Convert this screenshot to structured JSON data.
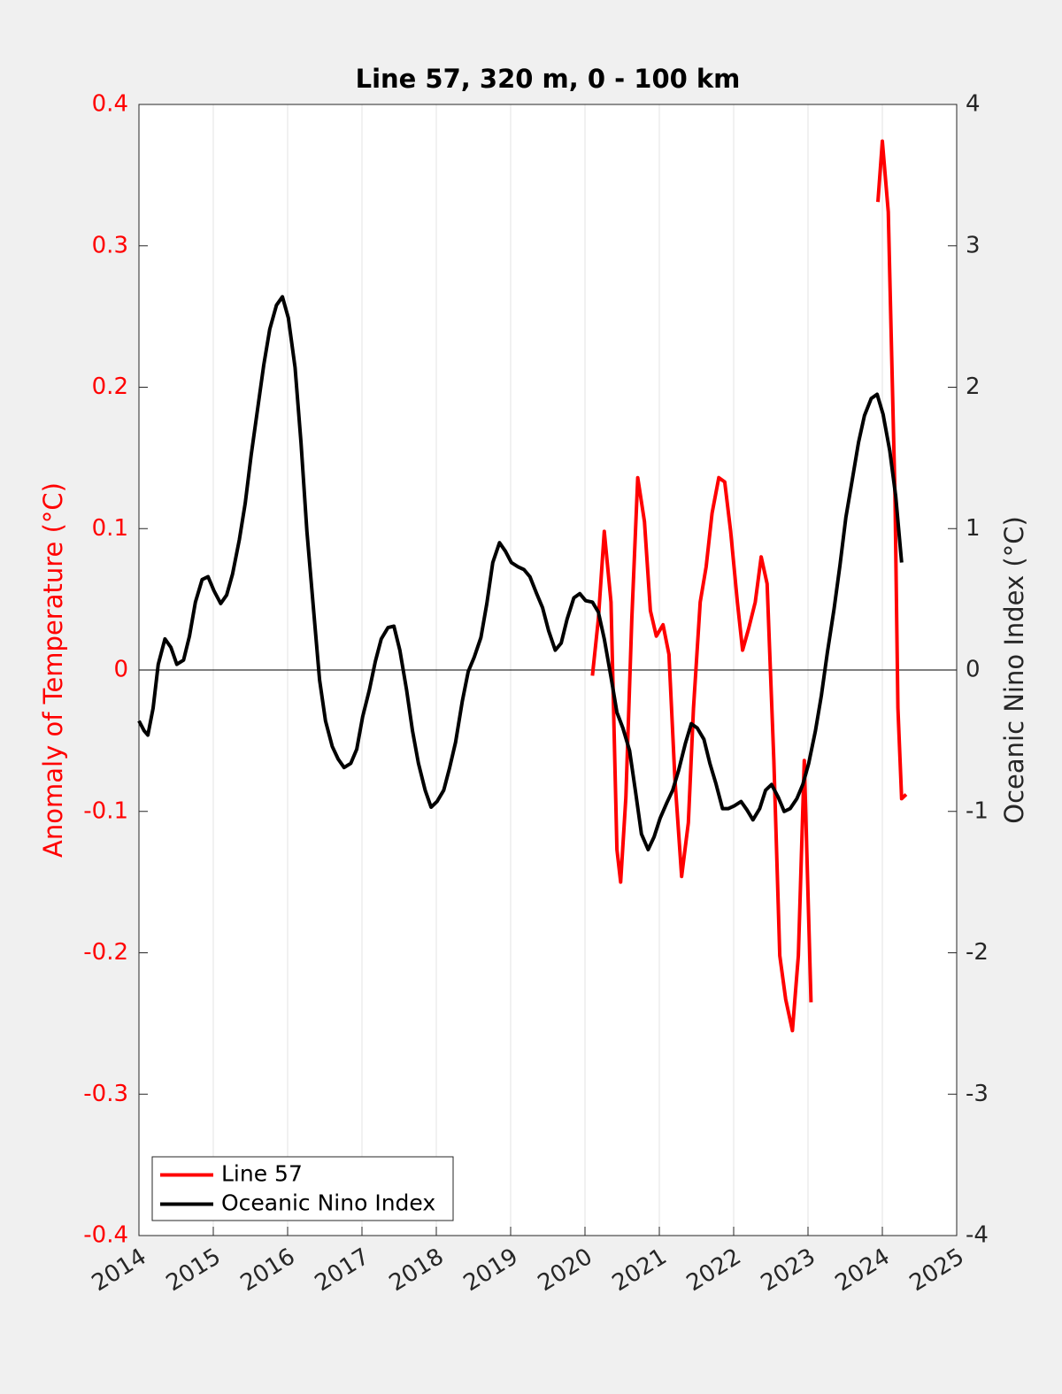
{
  "chart_data": {
    "type": "line",
    "title": "Line 57, 320 m, 0 - 100 km",
    "y_label": "Anomaly of Temperature (°C)",
    "y2_label": "Oceanic Nino Index (°C)",
    "xlim": [
      2014,
      2025
    ],
    "xticks": [
      2014,
      2015,
      2016,
      2017,
      2018,
      2019,
      2020,
      2021,
      2022,
      2023,
      2024,
      2025
    ],
    "ylim": [
      -0.4,
      0.4
    ],
    "yticks": [
      -0.4,
      -0.3,
      -0.2,
      -0.1,
      0,
      0.1,
      0.2,
      0.3,
      0.4
    ],
    "y2lim": [
      -4,
      4
    ],
    "y2ticks": [
      -4,
      -3,
      -2,
      -1,
      0,
      1,
      2,
      3,
      4
    ],
    "hline": 0,
    "grid": "x",
    "legend": "lower left",
    "y_color": "#ff0000",
    "y2_color": "#262626",
    "series": [
      {
        "name": "Line 57",
        "color": "#ff0000",
        "axis": "y",
        "x": [
          2020.1,
          2020.18,
          2020.26,
          2020.35,
          2020.43,
          2020.48,
          2020.55,
          2020.63,
          2020.71,
          2020.8,
          2020.88,
          2020.96,
          2021.05,
          2021.13,
          2021.21,
          2021.3,
          2021.39,
          2021.46,
          2021.55,
          2021.63,
          2021.71,
          2021.8,
          2021.88,
          2021.96,
          2022.05,
          2022.12,
          2022.2,
          2022.29,
          2022.37,
          2022.45,
          2022.54,
          2022.62,
          2022.7,
          2022.79,
          2022.87,
          2022.95,
          2023.04,
          2023.5,
          2023.94,
          2024.0,
          2024.08,
          2024.17,
          2024.21,
          2024.26,
          2024.32
        ],
        "values": [
          -0.004,
          0.036,
          0.098,
          0.048,
          -0.127,
          -0.15,
          -0.09,
          0.036,
          0.136,
          0.105,
          0.042,
          0.024,
          0.032,
          0.011,
          -0.077,
          -0.146,
          -0.108,
          -0.027,
          0.048,
          0.073,
          0.111,
          0.136,
          0.133,
          0.098,
          0.048,
          0.014,
          0.029,
          0.048,
          0.08,
          0.061,
          -0.064,
          -0.202,
          -0.233,
          -0.255,
          -0.202,
          -0.064,
          -0.235,
          null,
          0.331,
          0.374,
          0.324,
          0.123,
          -0.027,
          -0.091,
          -0.088
        ]
      },
      {
        "name": "Oceanic Nino Index",
        "color": "#000000",
        "axis": "y2",
        "x": [
          2014.0,
          2014.07,
          2014.12,
          2014.19,
          2014.26,
          2014.35,
          2014.43,
          2014.51,
          2014.6,
          2014.68,
          2014.76,
          2014.85,
          2014.93,
          2015.01,
          2015.1,
          2015.18,
          2015.26,
          2015.35,
          2015.43,
          2015.51,
          2015.6,
          2015.68,
          2015.76,
          2015.85,
          2015.93,
          2016.01,
          2016.1,
          2016.18,
          2016.26,
          2016.35,
          2016.43,
          2016.51,
          2016.6,
          2016.68,
          2016.76,
          2016.85,
          2016.93,
          2017.01,
          2017.1,
          2017.18,
          2017.26,
          2017.35,
          2017.43,
          2017.51,
          2017.6,
          2017.68,
          2017.76,
          2017.85,
          2017.93,
          2018.01,
          2018.1,
          2018.18,
          2018.26,
          2018.35,
          2018.43,
          2018.51,
          2018.6,
          2018.68,
          2018.76,
          2018.85,
          2018.93,
          2019.01,
          2019.1,
          2019.18,
          2019.26,
          2019.35,
          2019.43,
          2019.51,
          2019.6,
          2019.68,
          2019.76,
          2019.85,
          2019.93,
          2020.01,
          2020.1,
          2020.18,
          2020.26,
          2020.35,
          2020.43,
          2020.51,
          2020.6,
          2020.68,
          2020.76,
          2020.85,
          2020.93,
          2021.01,
          2021.1,
          2021.18,
          2021.26,
          2021.35,
          2021.43,
          2021.51,
          2021.6,
          2021.68,
          2021.76,
          2021.85,
          2021.93,
          2022.01,
          2022.1,
          2022.18,
          2022.26,
          2022.35,
          2022.43,
          2022.51,
          2022.6,
          2022.68,
          2022.76,
          2022.85,
          2022.93,
          2023.01,
          2023.1,
          2023.18,
          2023.26,
          2023.35,
          2023.43,
          2023.51,
          2023.6,
          2023.68,
          2023.76,
          2023.85,
          2023.93,
          2024.01,
          2024.1,
          2024.18,
          2024.26
        ],
        "values": [
          -0.36,
          -0.43,
          -0.46,
          -0.27,
          0.04,
          0.22,
          0.16,
          0.04,
          0.07,
          0.24,
          0.48,
          0.64,
          0.66,
          0.56,
          0.47,
          0.53,
          0.68,
          0.92,
          1.18,
          1.52,
          1.86,
          2.16,
          2.41,
          2.58,
          2.64,
          2.49,
          2.14,
          1.61,
          0.98,
          0.42,
          -0.07,
          -0.36,
          -0.54,
          -0.63,
          -0.69,
          -0.66,
          -0.56,
          -0.33,
          -0.14,
          0.06,
          0.22,
          0.3,
          0.31,
          0.14,
          -0.14,
          -0.43,
          -0.66,
          -0.85,
          -0.97,
          -0.93,
          -0.85,
          -0.69,
          -0.51,
          -0.22,
          -0.01,
          0.09,
          0.23,
          0.47,
          0.76,
          0.9,
          0.84,
          0.76,
          0.73,
          0.71,
          0.66,
          0.54,
          0.44,
          0.28,
          0.14,
          0.19,
          0.36,
          0.51,
          0.54,
          0.49,
          0.48,
          0.41,
          0.22,
          -0.05,
          -0.3,
          -0.41,
          -0.57,
          -0.86,
          -1.16,
          -1.27,
          -1.18,
          -1.05,
          -0.94,
          -0.85,
          -0.71,
          -0.52,
          -0.38,
          -0.41,
          -0.49,
          -0.66,
          -0.8,
          -0.98,
          -0.98,
          -0.96,
          -0.93,
          -0.99,
          -1.06,
          -0.98,
          -0.85,
          -0.81,
          -0.9,
          -1.0,
          -0.98,
          -0.91,
          -0.81,
          -0.66,
          -0.43,
          -0.18,
          0.12,
          0.43,
          0.74,
          1.08,
          1.36,
          1.61,
          1.8,
          1.92,
          1.95,
          1.81,
          1.55,
          1.23,
          0.76
        ]
      }
    ]
  }
}
